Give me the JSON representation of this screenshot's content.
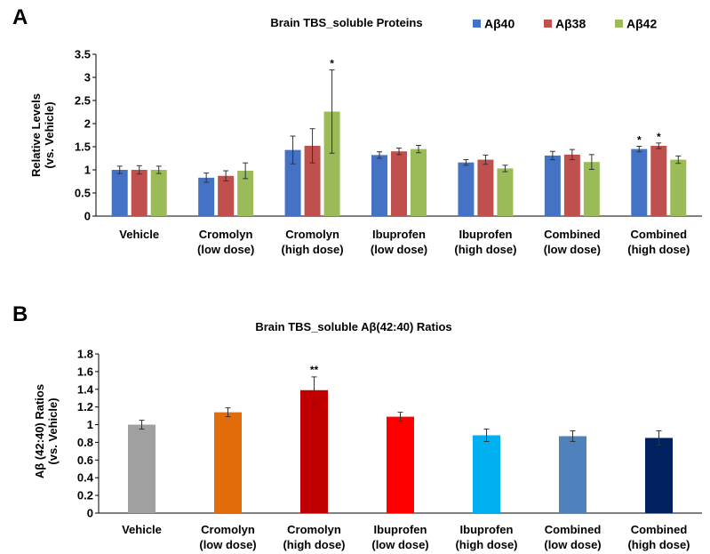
{
  "panels": [
    {
      "letter": "A"
    },
    {
      "letter": "B"
    }
  ],
  "chart_data": [
    {
      "type": "bar",
      "title": "Brain TBS_soluble  Proteins",
      "ylabel_lines": [
        "Relative Levels",
        "(vs. Vehicle)"
      ],
      "categories": [
        [
          "Vehicle"
        ],
        [
          "Cromolyn",
          "(low dose)"
        ],
        [
          "Cromolyn",
          "(high dose)"
        ],
        [
          "Ibuprofen",
          "(low dose)"
        ],
        [
          "Ibuprofen",
          "(high dose)"
        ],
        [
          "Combined",
          "(low dose)"
        ],
        [
          "Combined",
          "(high dose)"
        ]
      ],
      "ylim": [
        0,
        3.5
      ],
      "yticks": [
        "0",
        "0.5",
        "1",
        "1.5",
        "2",
        "2.5",
        "3",
        "3.5"
      ],
      "grid": false,
      "legend_position": "top-right",
      "series": [
        {
          "name": "Aβ40",
          "color": "#4472C4",
          "values": [
            1.0,
            0.83,
            1.43,
            1.32,
            1.16,
            1.31,
            1.45
          ],
          "errors": [
            0.08,
            0.1,
            0.3,
            0.07,
            0.06,
            0.09,
            0.06
          ],
          "annotations": [
            "",
            "",
            "",
            "",
            "",
            "",
            "*"
          ]
        },
        {
          "name": "Aβ38",
          "color": "#C0504D",
          "values": [
            1.0,
            0.87,
            1.52,
            1.4,
            1.22,
            1.33,
            1.52
          ],
          "errors": [
            0.09,
            0.11,
            0.37,
            0.07,
            0.1,
            0.11,
            0.06
          ],
          "annotations": [
            "",
            "",
            "",
            "",
            "",
            "",
            "*"
          ]
        },
        {
          "name": "Aβ42",
          "color": "#9BBB59",
          "values": [
            1.0,
            0.98,
            2.26,
            1.45,
            1.03,
            1.17,
            1.22
          ],
          "errors": [
            0.08,
            0.17,
            0.9,
            0.08,
            0.07,
            0.16,
            0.08
          ],
          "annotations": [
            "",
            "",
            "*",
            "",
            "",
            "",
            ""
          ]
        }
      ]
    },
    {
      "type": "bar",
      "title": "Brain TBS_soluble  Aβ(42:40)  Ratios",
      "ylabel_lines": [
        "Aβ (42:40) Ratios",
        "(vs. Vehicle)"
      ],
      "categories": [
        [
          "Vehicle"
        ],
        [
          "Cromolyn",
          "(low dose)"
        ],
        [
          "Cromolyn",
          "(high dose)"
        ],
        [
          "Ibuprofen",
          "(low dose)"
        ],
        [
          "Ibuprofen",
          "(high dose)"
        ],
        [
          "Combined",
          "(low dose)"
        ],
        [
          "Combined",
          "(high dose)"
        ]
      ],
      "ylim": [
        0,
        1.8
      ],
      "yticks": [
        "0",
        "0.2",
        "0.4",
        "0.6",
        "0.8",
        "1",
        "1.2",
        "1.4",
        "1.6",
        "1.8"
      ],
      "grid": false,
      "values": [
        1.0,
        1.14,
        1.39,
        1.09,
        0.88,
        0.87,
        0.85
      ],
      "errors": [
        0.05,
        0.05,
        0.15,
        0.05,
        0.07,
        0.06,
        0.08
      ],
      "colors": [
        "#A0A0A0",
        "#E36C0A",
        "#C00000",
        "#FF0000",
        "#00B0F0",
        "#4F81BD",
        "#002060"
      ],
      "annotations": [
        "",
        "",
        "**",
        "",
        "",
        "",
        ""
      ]
    }
  ]
}
